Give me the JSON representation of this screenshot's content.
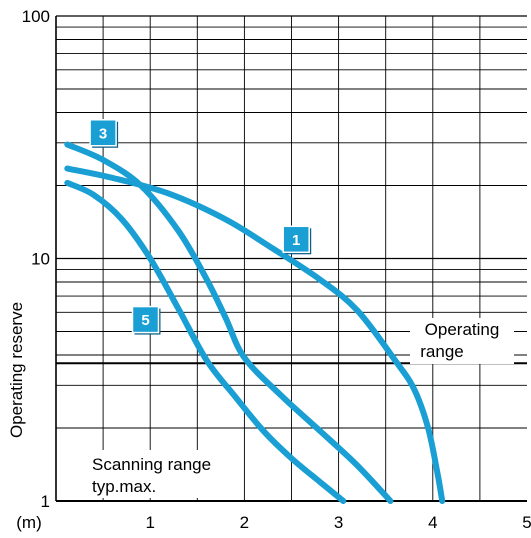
{
  "chart_data": {
    "type": "line",
    "ylabel": "Operating reserve",
    "x_unit_label": "(m)",
    "yscale": "log",
    "xlim": [
      0,
      5
    ],
    "ylim": [
      1,
      100
    ],
    "x_ticks": [
      "1",
      "2",
      "3",
      "4",
      "5"
    ],
    "y_ticks": [
      "1",
      "10",
      "100"
    ],
    "grid": true,
    "series": [
      {
        "name": "1",
        "color": "#1a9fd4",
        "x": [
          0.12,
          0.6,
          1.2,
          1.8,
          2.3,
          2.8,
          3.2,
          3.6,
          3.8,
          3.95,
          4.05,
          4.1
        ],
        "y": [
          23.5,
          21.5,
          18.5,
          14.5,
          11,
          8.2,
          6.1,
          3.8,
          2.9,
          2.0,
          1.3,
          1.0
        ]
      },
      {
        "name": "3",
        "color": "#1a9fd4",
        "x": [
          0.12,
          0.5,
          0.9,
          1.3,
          1.6,
          1.8,
          2.0,
          2.4,
          2.8,
          3.2,
          3.55
        ],
        "y": [
          29.5,
          25.5,
          20,
          13,
          8.2,
          5.7,
          3.9,
          2.7,
          1.95,
          1.4,
          1.0
        ]
      },
      {
        "name": "5",
        "color": "#1a9fd4",
        "x": [
          0.12,
          0.4,
          0.7,
          1.0,
          1.3,
          1.6,
          1.9,
          2.2,
          2.5,
          2.8,
          3.05
        ],
        "y": [
          20.5,
          18.3,
          14.5,
          10,
          6.2,
          3.8,
          2.7,
          1.95,
          1.5,
          1.2,
          1.0
        ]
      }
    ],
    "series_label_positions": [
      {
        "name": "1",
        "x": 2.55,
        "y": 12
      },
      {
        "name": "3",
        "x": 0.5,
        "y": 33
      },
      {
        "name": "5",
        "x": 0.95,
        "y": 5.6
      }
    ],
    "annotations": {
      "operating_range_label_line1": "Operating",
      "operating_range_label_line2": "range",
      "operating_range_threshold": 3.7,
      "scanning_range_label_line1": "Scanning range",
      "scanning_range_label_line2": "typ.max."
    }
  }
}
